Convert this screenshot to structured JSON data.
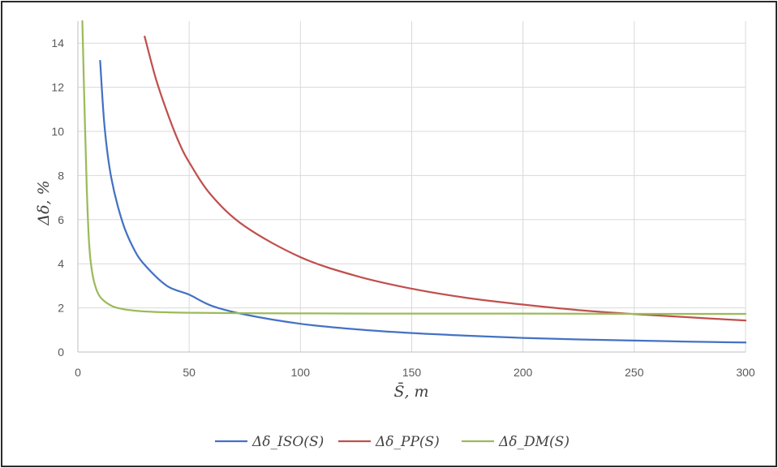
{
  "chart_data": {
    "type": "line",
    "xlabel": "S̄, m",
    "ylabel": "Δδ, %",
    "xlim": [
      0,
      300
    ],
    "ylim": [
      0,
      15
    ],
    "xticks": [
      "0",
      "50",
      "100",
      "150",
      "200",
      "250",
      "300"
    ],
    "yticks": [
      "0",
      "2",
      "4",
      "6",
      "8",
      "10",
      "12",
      "14"
    ],
    "grid": true,
    "legend_position": "bottom",
    "x": [
      2,
      3,
      5,
      7.5,
      10,
      15,
      20,
      25,
      30,
      40,
      50,
      60,
      75,
      100,
      125,
      150,
      175,
      200,
      225,
      250,
      275,
      300
    ],
    "series": [
      {
        "name": "Δδ_ISO(S)",
        "color": "#4472C4",
        "points": [
          [
            10,
            13.2
          ],
          [
            12,
            10.2
          ],
          [
            15,
            7.9
          ],
          [
            20,
            5.9
          ],
          [
            25,
            4.7
          ],
          [
            30,
            3.95
          ],
          [
            40,
            3.0
          ],
          [
            50,
            2.6
          ],
          [
            60,
            2.1
          ],
          [
            75,
            1.7
          ],
          [
            100,
            1.28
          ],
          [
            125,
            1.03
          ],
          [
            150,
            0.86
          ],
          [
            175,
            0.74
          ],
          [
            200,
            0.64
          ],
          [
            225,
            0.57
          ],
          [
            250,
            0.52
          ],
          [
            275,
            0.47
          ],
          [
            300,
            0.43
          ]
        ]
      },
      {
        "name": "Δδ_PP(S)",
        "color": "#C0504D",
        "points": [
          [
            30,
            14.3
          ],
          [
            35,
            12.4
          ],
          [
            40,
            10.9
          ],
          [
            45,
            9.6
          ],
          [
            50,
            8.6
          ],
          [
            60,
            7.1
          ],
          [
            75,
            5.7
          ],
          [
            100,
            4.3
          ],
          [
            125,
            3.45
          ],
          [
            150,
            2.87
          ],
          [
            175,
            2.45
          ],
          [
            200,
            2.15
          ],
          [
            225,
            1.9
          ],
          [
            250,
            1.72
          ],
          [
            275,
            1.57
          ],
          [
            300,
            1.43
          ]
        ]
      },
      {
        "name": "Δδ_DM(S)",
        "color": "#9BBB59",
        "points": [
          [
            2,
            15.0
          ],
          [
            3,
            11.0
          ],
          [
            4,
            7.4
          ],
          [
            5,
            5.0
          ],
          [
            6,
            3.9
          ],
          [
            7.5,
            3.1
          ],
          [
            10,
            2.5
          ],
          [
            15,
            2.1
          ],
          [
            20,
            1.95
          ],
          [
            25,
            1.88
          ],
          [
            30,
            1.84
          ],
          [
            40,
            1.8
          ],
          [
            50,
            1.78
          ],
          [
            75,
            1.76
          ],
          [
            100,
            1.75
          ],
          [
            150,
            1.74
          ],
          [
            200,
            1.74
          ],
          [
            250,
            1.73
          ],
          [
            300,
            1.73
          ]
        ]
      }
    ]
  }
}
